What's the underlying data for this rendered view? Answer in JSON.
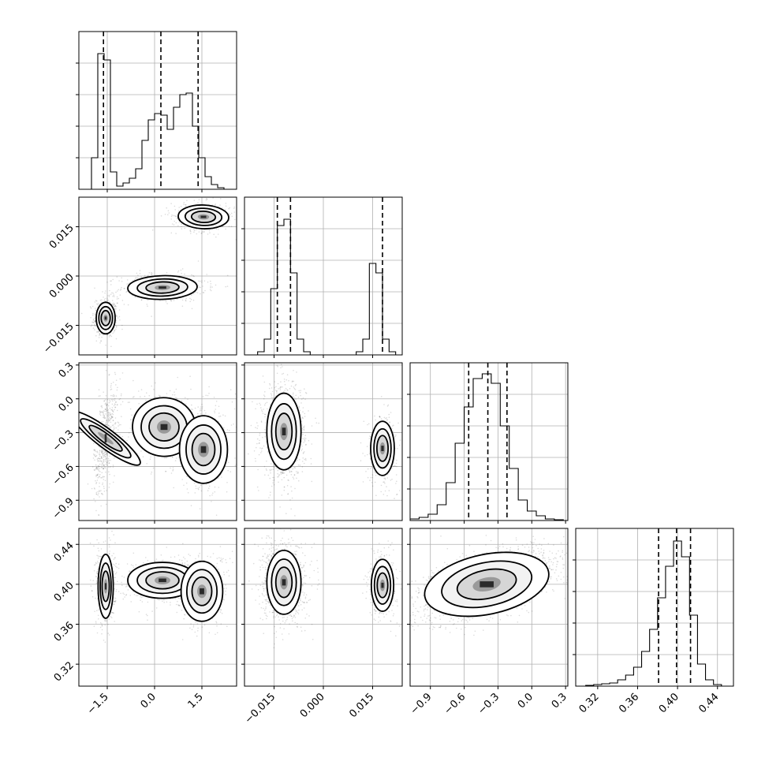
{
  "chart_data": {
    "type": "corner",
    "grid": true,
    "parameters": [
      {
        "ticks": [
          -1.5,
          0.0,
          1.5
        ],
        "tick_labels": [
          "−1.5",
          "0.0",
          "1.5"
        ],
        "range": [
          -2.4,
          2.6
        ]
      },
      {
        "ticks": [
          -0.015,
          0.0,
          0.015
        ],
        "tick_labels": [
          "−0.015",
          "0.000",
          "0.015"
        ],
        "range": [
          -0.024,
          0.024
        ]
      },
      {
        "ticks": [
          -0.9,
          -0.6,
          -0.3,
          0.0,
          0.3
        ],
        "tick_labels": [
          "−0.9",
          "−0.6",
          "−0.3",
          "0.0",
          "0.3"
        ],
        "range": [
          -1.08,
          0.32
        ]
      },
      {
        "ticks": [
          0.32,
          0.36,
          0.4,
          0.44
        ],
        "tick_labels": [
          "0.32",
          "0.36",
          "0.40",
          "0.44"
        ],
        "range": [
          0.298,
          0.456
        ]
      }
    ],
    "histograms": [
      {
        "param": 0,
        "bin_edges": [
          -2.4,
          -2.2,
          -2.0,
          -1.8,
          -1.6,
          -1.4,
          -1.2,
          -1.0,
          -0.8,
          -0.6,
          -0.4,
          -0.2,
          0.0,
          0.2,
          0.4,
          0.6,
          0.8,
          1.0,
          1.2,
          1.4,
          1.6,
          1.8,
          2.0,
          2.2,
          2.4,
          2.6
        ],
        "counts": [
          0,
          0,
          0.2,
          0.86,
          0.82,
          0.11,
          0.02,
          0.04,
          0.07,
          0.13,
          0.31,
          0.44,
          0.48,
          0.47,
          0.38,
          0.52,
          0.6,
          0.61,
          0.4,
          0.2,
          0.08,
          0.03,
          0.01,
          0,
          0
        ],
        "quantiles": [
          -1.62,
          0.2,
          1.38
        ],
        "ymax": 1.0
      },
      {
        "param": 1,
        "bin_edges": [
          -0.024,
          -0.022,
          -0.02,
          -0.018,
          -0.016,
          -0.014,
          -0.012,
          -0.01,
          -0.008,
          -0.006,
          -0.004,
          -0.002,
          0.0,
          0.002,
          0.004,
          0.006,
          0.008,
          0.01,
          0.012,
          0.014,
          0.016,
          0.018,
          0.02,
          0.022,
          0.024
        ],
        "counts": [
          0,
          0,
          0.02,
          0.1,
          0.42,
          0.82,
          0.86,
          0.52,
          0.1,
          0.02,
          0,
          0,
          0,
          0,
          0,
          0,
          0,
          0.02,
          0.1,
          0.58,
          0.52,
          0.1,
          0.02,
          0
        ],
        "quantiles": [
          -0.014,
          -0.01,
          0.018
        ],
        "ymax": 1.0
      },
      {
        "param": 2,
        "bin_edges": [
          -1.08,
          -1.0,
          -0.92,
          -0.84,
          -0.76,
          -0.68,
          -0.6,
          -0.52,
          -0.44,
          -0.36,
          -0.28,
          -0.2,
          -0.12,
          -0.04,
          0.04,
          0.12,
          0.2,
          0.28,
          0.32
        ],
        "counts": [
          0.01,
          0.02,
          0.04,
          0.1,
          0.24,
          0.49,
          0.72,
          0.9,
          0.93,
          0.87,
          0.6,
          0.33,
          0.13,
          0.06,
          0.03,
          0.01,
          0.005,
          0
        ],
        "quantiles": [
          -0.56,
          -0.39,
          -0.22
        ],
        "ymax": 1.0
      },
      {
        "param": 3,
        "bin_edges": [
          0.298,
          0.308,
          0.316,
          0.324,
          0.332,
          0.34,
          0.348,
          0.356,
          0.364,
          0.372,
          0.38,
          0.388,
          0.396,
          0.404,
          0.412,
          0.42,
          0.428,
          0.436,
          0.444,
          0.452,
          0.456
        ],
        "counts": [
          0,
          0.005,
          0.01,
          0.015,
          0.02,
          0.04,
          0.07,
          0.12,
          0.22,
          0.36,
          0.56,
          0.76,
          0.92,
          0.82,
          0.45,
          0.14,
          0.04,
          0.01,
          0,
          0
        ],
        "quantiles": [
          0.381,
          0.399,
          0.413
        ],
        "ymax": 1.0
      }
    ],
    "pairs": [
      {
        "x": 0,
        "y": 1,
        "clusters": [
          {
            "mean": [
              -1.55,
              -0.0128
            ],
            "sd": [
              0.15,
              0.0024
            ],
            "rho": 0.0,
            "weight": 0.36
          },
          {
            "mean": [
              0.25,
              -0.0035
            ],
            "sd": [
              0.55,
              0.0018
            ],
            "rho": 0.1,
            "weight": 0.36
          },
          {
            "mean": [
              1.55,
              0.018
            ],
            "sd": [
              0.4,
              0.0018
            ],
            "rho": -0.1,
            "weight": 0.28
          }
        ]
      },
      {
        "x": 0,
        "y": 2,
        "clusters": [
          {
            "mean": [
              -1.55,
              -0.35
            ],
            "sd": [
              0.15,
              0.19
            ],
            "rho": 0.5,
            "weight": 0.36
          },
          {
            "mean": [
              0.3,
              -0.25
            ],
            "sd": [
              0.5,
              0.13
            ],
            "rho": -0.1,
            "weight": 0.34
          },
          {
            "mean": [
              1.55,
              -0.45
            ],
            "sd": [
              0.38,
              0.15
            ],
            "rho": 0.0,
            "weight": 0.3
          }
        ]
      },
      {
        "x": 1,
        "y": 2,
        "clusters": [
          {
            "mean": [
              -0.012,
              -0.29
            ],
            "sd": [
              0.0026,
              0.17
            ],
            "rho": 0.0,
            "weight": 0.72
          },
          {
            "mean": [
              0.018,
              -0.44
            ],
            "sd": [
              0.0018,
              0.12
            ],
            "rho": 0.0,
            "weight": 0.28
          }
        ]
      },
      {
        "x": 0,
        "y": 3,
        "clusters": [
          {
            "mean": [
              -1.55,
              0.398
            ],
            "sd": [
              0.12,
              0.016
            ],
            "rho": 0.0,
            "weight": 0.36
          },
          {
            "mean": [
              0.25,
              0.404
            ],
            "sd": [
              0.55,
              0.009
            ],
            "rho": 0.0,
            "weight": 0.36
          },
          {
            "mean": [
              1.5,
              0.393
            ],
            "sd": [
              0.33,
              0.015
            ],
            "rho": 0.0,
            "weight": 0.28
          }
        ]
      },
      {
        "x": 1,
        "y": 3,
        "clusters": [
          {
            "mean": [
              -0.012,
              0.402
            ],
            "sd": [
              0.0026,
              0.016
            ],
            "rho": 0.0,
            "weight": 0.72
          },
          {
            "mean": [
              0.018,
              0.399
            ],
            "sd": [
              0.0017,
              0.013
            ],
            "rho": 0.0,
            "weight": 0.28
          }
        ]
      },
      {
        "x": 2,
        "y": 3,
        "clusters": [
          {
            "mean": [
              -0.4,
              0.4
            ],
            "sd": [
              0.28,
              0.015
            ],
            "rho": 0.55,
            "weight": 1.0
          }
        ]
      }
    ]
  }
}
